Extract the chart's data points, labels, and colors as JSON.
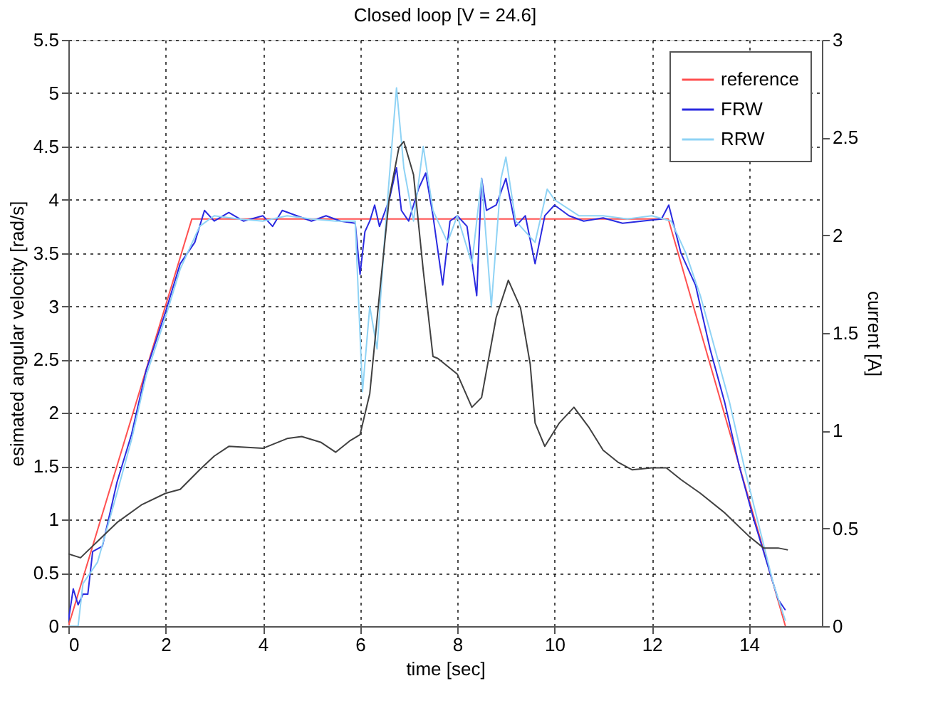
{
  "chart_data": {
    "type": "line",
    "title": "Closed loop [V = 24.6]",
    "xlabel": "time [sec]",
    "ylabel": "esimated angular velocity [rad/s]",
    "y2label": "current [A]",
    "xlim": [
      0,
      15.5
    ],
    "xticks": [
      0,
      2,
      4,
      6,
      8,
      10,
      12,
      14
    ],
    "ylim": [
      0,
      5.5
    ],
    "yticks": [
      0,
      0.5,
      1,
      1.5,
      2,
      2.5,
      3,
      3.5,
      4,
      4.5,
      5,
      5.5
    ],
    "y2lim": [
      0,
      3
    ],
    "y2ticks": [
      0,
      0.5,
      1,
      1.5,
      2,
      2.5,
      3
    ],
    "grid": true,
    "legend": "top right",
    "marker": "none",
    "line_style": "solid",
    "series": [
      {
        "name": "reference",
        "color": "#ff5050",
        "x": [
          0,
          2.54,
          12.34,
          14.75
        ],
        "values": [
          0,
          3.82,
          3.82,
          0
        ]
      },
      {
        "name": "FRW",
        "color": "#2a2ae0",
        "x": [
          0,
          0.1,
          0.2,
          0.3,
          0.4,
          0.5,
          0.7,
          1,
          1.3,
          1.6,
          2,
          2.3,
          2.6,
          2.8,
          3,
          3.3,
          3.6,
          4,
          4.2,
          4.4,
          4.7,
          5,
          5.3,
          5.6,
          5.9,
          6.0,
          6.1,
          6.2,
          6.3,
          6.4,
          6.6,
          6.75,
          6.85,
          7.0,
          7.2,
          7.35,
          7.5,
          7.7,
          7.85,
          8.0,
          8.2,
          8.4,
          8.5,
          8.6,
          8.8,
          9.0,
          9.2,
          9.4,
          9.6,
          9.8,
          10,
          10.3,
          10.6,
          11,
          11.4,
          11.8,
          12.2,
          12.35,
          12.6,
          12.9,
          13.2,
          13.5,
          13.8,
          14.1,
          14.4,
          14.6,
          14.75
        ],
        "values": [
          0.05,
          0.35,
          0.2,
          0.3,
          0.3,
          0.7,
          0.75,
          1.35,
          1.8,
          2.4,
          2.95,
          3.4,
          3.6,
          3.9,
          3.8,
          3.88,
          3.8,
          3.85,
          3.75,
          3.9,
          3.85,
          3.8,
          3.85,
          3.8,
          3.78,
          3.3,
          3.7,
          3.8,
          3.95,
          3.75,
          4.0,
          4.3,
          3.9,
          3.8,
          4.1,
          4.25,
          3.85,
          3.2,
          3.8,
          3.85,
          3.75,
          3.1,
          4.2,
          3.9,
          3.95,
          4.2,
          3.75,
          3.85,
          3.4,
          3.85,
          3.95,
          3.85,
          3.8,
          3.83,
          3.78,
          3.8,
          3.82,
          3.95,
          3.5,
          3.2,
          2.6,
          2.1,
          1.5,
          1.0,
          0.55,
          0.25,
          0.15
        ]
      },
      {
        "name": "RRW",
        "color": "#8fd3f5",
        "x": [
          0,
          0.2,
          0.3,
          0.6,
          1,
          1.3,
          1.6,
          2,
          2.3,
          2.7,
          3,
          3.5,
          4,
          4.5,
          5,
          5.5,
          5.9,
          6.05,
          6.2,
          6.35,
          6.5,
          6.6,
          6.75,
          6.9,
          7.1,
          7.3,
          7.5,
          7.8,
          8.0,
          8.3,
          8.5,
          8.7,
          8.9,
          9.0,
          9.2,
          9.6,
          9.85,
          10,
          10.5,
          11,
          11.5,
          12,
          12.4,
          12.7,
          13,
          13.3,
          13.6,
          13.9,
          14.2,
          14.5,
          14.75
        ],
        "values": [
          0,
          0,
          0.4,
          0.6,
          1.25,
          1.75,
          2.35,
          2.9,
          3.35,
          3.75,
          3.85,
          3.82,
          3.8,
          3.85,
          3.82,
          3.8,
          3.8,
          2.2,
          3.0,
          2.6,
          3.6,
          4.2,
          5.05,
          4.3,
          3.8,
          4.5,
          3.9,
          3.6,
          3.85,
          3.4,
          4.2,
          3.0,
          4.2,
          4.4,
          3.8,
          3.6,
          4.1,
          4.0,
          3.85,
          3.85,
          3.82,
          3.85,
          3.8,
          3.5,
          3.1,
          2.6,
          2.1,
          1.5,
          0.95,
          0.4,
          0.05
        ]
      },
      {
        "color": "#404040",
        "axis": "y2",
        "x": [
          0,
          0.25,
          0.5,
          1,
          1.5,
          2,
          2.3,
          2.7,
          3,
          3.3,
          4,
          4.5,
          4.8,
          5.2,
          5.5,
          5.8,
          6,
          6.2,
          6.4,
          6.6,
          6.8,
          6.9,
          7.1,
          7.3,
          7.5,
          7.6,
          8,
          8.3,
          8.5,
          8.8,
          9.05,
          9.3,
          9.5,
          9.6,
          9.8,
          10.1,
          10.4,
          10.7,
          11,
          11.3,
          11.6,
          12,
          12.3,
          12.6,
          13,
          13.5,
          14,
          14.3,
          14.6,
          14.8
        ],
        "values": [
          0.37,
          0.35,
          0.41,
          0.53,
          0.62,
          0.68,
          0.7,
          0.8,
          0.87,
          0.92,
          0.91,
          0.96,
          0.97,
          0.94,
          0.89,
          0.95,
          0.98,
          1.19,
          1.7,
          2.19,
          2.45,
          2.48,
          2.31,
          1.82,
          1.38,
          1.37,
          1.29,
          1.12,
          1.17,
          1.58,
          1.77,
          1.63,
          1.34,
          1.04,
          0.92,
          1.04,
          1.12,
          1.02,
          0.9,
          0.84,
          0.8,
          0.81,
          0.81,
          0.75,
          0.68,
          0.58,
          0.46,
          0.4,
          0.4,
          0.39
        ]
      }
    ]
  }
}
